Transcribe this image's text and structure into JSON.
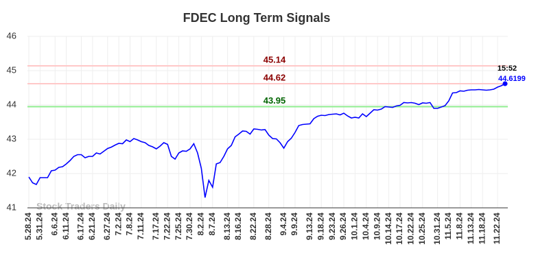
{
  "chart_data": {
    "type": "line",
    "title": "FDEC Long Term Signals",
    "categories": [
      "5.28.24",
      null,
      null,
      "5.31.24",
      null,
      null,
      null,
      "6.6.24",
      null,
      null,
      "6.11.24",
      null,
      null,
      null,
      "6.17.24",
      null,
      null,
      "6.21.24",
      null,
      null,
      null,
      "6.27.24",
      null,
      null,
      "7.2.24",
      null,
      null,
      "7.8.24",
      null,
      null,
      "7.11.24",
      null,
      null,
      null,
      "7.17.24",
      null,
      null,
      "7.22.24",
      null,
      null,
      "7.25.24",
      null,
      null,
      "7.30.24",
      null,
      null,
      "8.2.24",
      null,
      null,
      "8.7.24",
      null,
      null,
      null,
      "8.13.24",
      null,
      null,
      "8.16.24",
      null,
      null,
      null,
      "8.22.24",
      null,
      null,
      null,
      "8.28.24",
      null,
      null,
      null,
      "9.4.24",
      null,
      null,
      "9.9.24",
      null,
      null,
      null,
      "9.13.24",
      null,
      null,
      "9.18.24",
      null,
      null,
      "9.23.24",
      null,
      null,
      "9.26.24",
      null,
      null,
      "10.1.24",
      null,
      null,
      "10.4.24",
      null,
      null,
      "10.9.24",
      null,
      null,
      "10.14.24",
      null,
      null,
      "10.17.24",
      null,
      null,
      "10.22.24",
      null,
      null,
      "10.25.24",
      null,
      null,
      null,
      "10.31.24",
      null,
      null,
      "11.5.24",
      null,
      null,
      "11.8.24",
      null,
      null,
      "11.13.24",
      null,
      null,
      "11.18.24",
      null,
      null,
      null,
      "11.22.24",
      null,
      null
    ],
    "values": [
      41.9,
      41.73,
      41.68,
      41.88,
      41.88,
      41.88,
      42.08,
      42.1,
      42.18,
      42.2,
      42.28,
      42.38,
      42.5,
      42.55,
      42.55,
      42.46,
      42.5,
      42.5,
      42.6,
      42.57,
      42.65,
      42.73,
      42.77,
      42.83,
      42.88,
      42.87,
      42.98,
      42.93,
      43.02,
      42.98,
      42.93,
      42.9,
      42.82,
      42.78,
      42.72,
      42.8,
      42.9,
      42.85,
      42.5,
      42.42,
      42.6,
      42.66,
      42.65,
      42.72,
      42.87,
      42.6,
      42.15,
      41.3,
      41.8,
      41.6,
      42.28,
      42.32,
      42.5,
      42.72,
      42.82,
      43.07,
      43.15,
      43.24,
      43.23,
      43.15,
      43.3,
      43.29,
      43.27,
      43.28,
      43.12,
      43.02,
      43.01,
      42.9,
      42.74,
      42.93,
      43.03,
      43.2,
      43.4,
      43.43,
      43.44,
      43.45,
      43.6,
      43.67,
      43.7,
      43.69,
      43.72,
      43.73,
      43.74,
      43.71,
      43.76,
      43.68,
      43.62,
      43.64,
      43.62,
      43.74,
      43.66,
      43.76,
      43.86,
      43.85,
      43.88,
      43.95,
      43.94,
      43.93,
      43.97,
      43.99,
      44.07,
      44.06,
      44.07,
      44.05,
      44.01,
      44.06,
      44.05,
      44.07,
      43.9,
      43.9,
      43.94,
      43.98,
      44.12,
      44.35,
      44.36,
      44.41,
      44.4,
      44.43,
      44.44,
      44.44,
      44.45,
      44.44,
      44.43,
      44.44,
      44.46,
      44.52,
      44.56,
      44.6199
    ],
    "color": "#0000ff",
    "ylim": [
      41,
      46
    ],
    "yticks": [
      41,
      42,
      43,
      44,
      45,
      46
    ],
    "grid": true,
    "hlines": [
      {
        "value": 45.14,
        "color": "#ffc8c8",
        "label_color": "#8b0000"
      },
      {
        "value": 44.62,
        "color": "#ffc8c8",
        "label_color": "#8b0000"
      },
      {
        "value": 43.95,
        "color": "#90ee90",
        "label_color": "#006400"
      }
    ],
    "last_time": "15:52",
    "watermark": "Stock Traders Daily"
  }
}
